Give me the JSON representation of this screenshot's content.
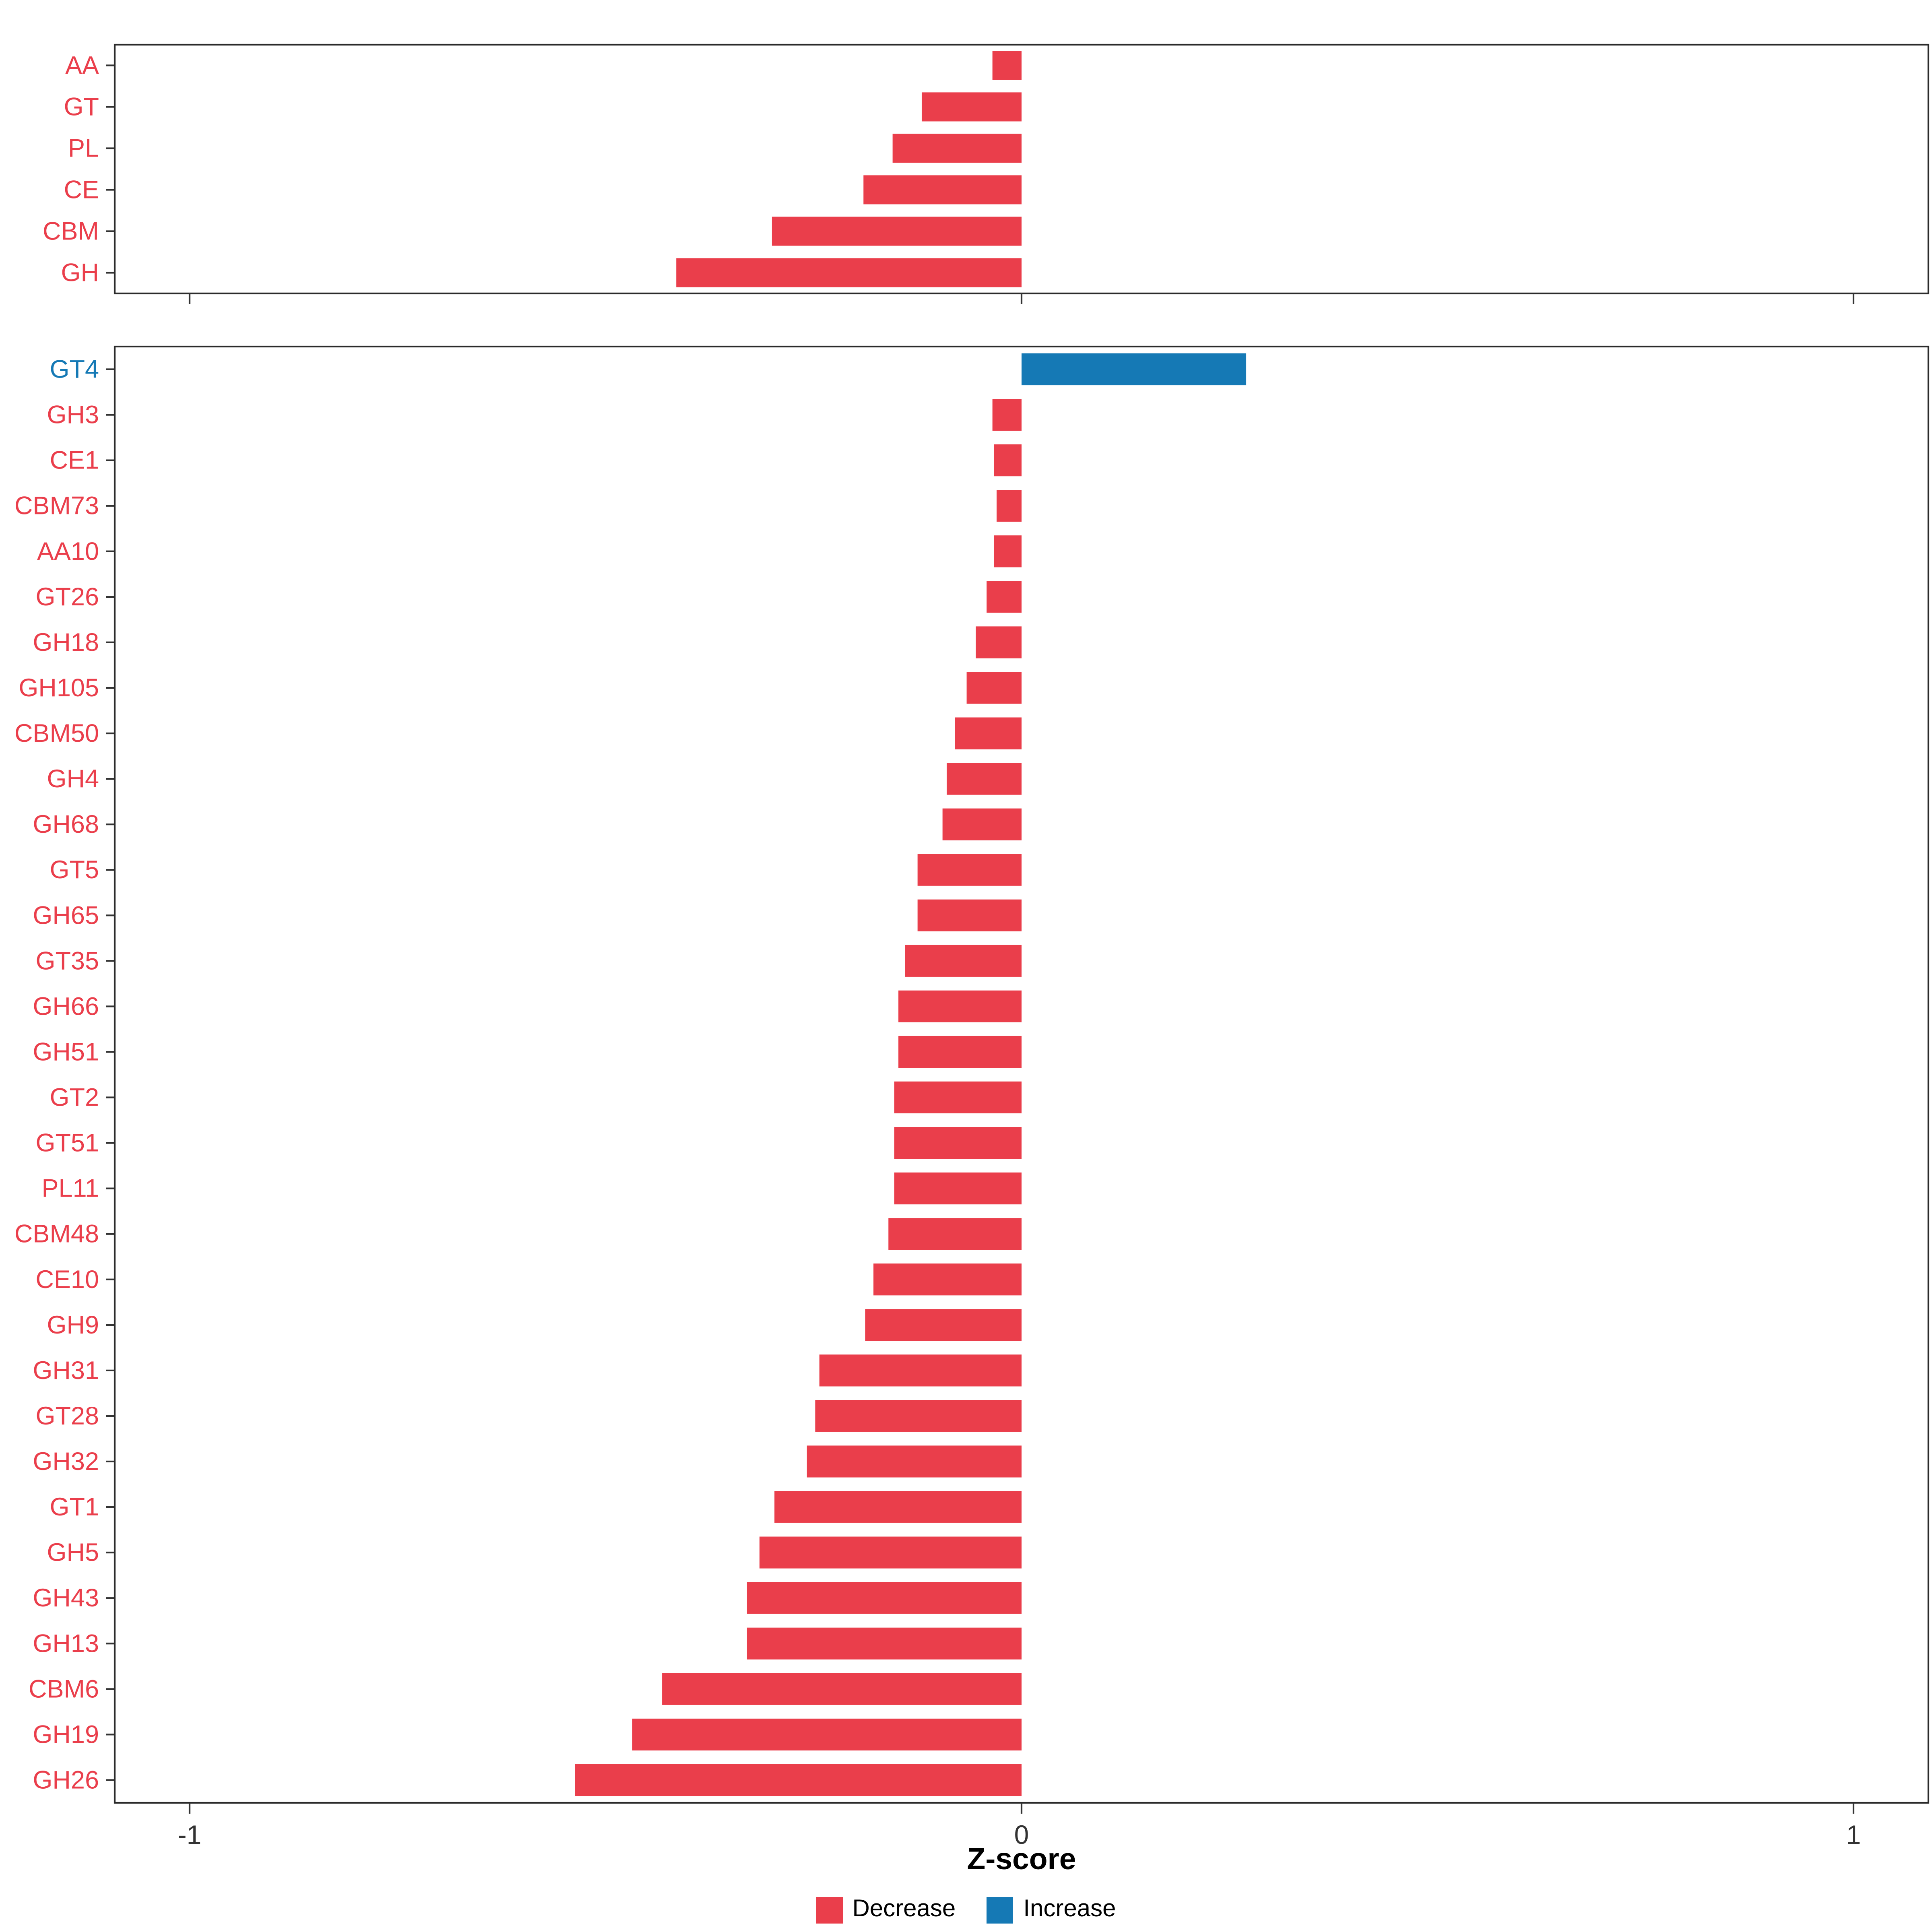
{
  "chart_data": {
    "type": "bar",
    "orientation": "horizontal",
    "title": "",
    "xlabel": "Z-score",
    "ylabel": "",
    "x_domain": [
      -1.09,
      1.09
    ],
    "x_ticks": [
      -1,
      0,
      1
    ],
    "x_tick_labels": [
      "-1",
      "0",
      "1"
    ],
    "grid": false,
    "legend_position": "bottom",
    "colors": {
      "decrease": "#EA3E4B",
      "increase": "#1579B5"
    },
    "legend": [
      {
        "label": "Decrease",
        "color_key": "decrease"
      },
      {
        "label": "Increase",
        "color_key": "increase"
      }
    ],
    "panels": [
      {
        "name": "cazyme-class-summary",
        "categories": [
          "AA",
          "GT",
          "PL",
          "CE",
          "CBM",
          "GH"
        ],
        "values": [
          -0.035,
          -0.12,
          -0.155,
          -0.19,
          -0.3,
          -0.415
        ]
      },
      {
        "name": "cazyme-family-detail",
        "categories": [
          "GT4",
          "GH3",
          "CE1",
          "CBM73",
          "AA10",
          "GT26",
          "GH18",
          "GH105",
          "CBM50",
          "GH4",
          "GH68",
          "GT5",
          "GH65",
          "GT35",
          "GH66",
          "GH51",
          "GT2",
          "GT51",
          "PL11",
          "CBM48",
          "CE10",
          "GH9",
          "GH31",
          "GT28",
          "GH32",
          "GT1",
          "GH5",
          "GH43",
          "GH13",
          "CBM6",
          "GH19",
          "GH26"
        ],
        "values": [
          0.27,
          -0.035,
          -0.033,
          -0.03,
          -0.033,
          -0.042,
          -0.055,
          -0.066,
          -0.08,
          -0.09,
          -0.095,
          -0.125,
          -0.125,
          -0.14,
          -0.148,
          -0.148,
          -0.153,
          -0.153,
          -0.153,
          -0.16,
          -0.178,
          -0.188,
          -0.243,
          -0.248,
          -0.258,
          -0.297,
          -0.315,
          -0.33,
          -0.33,
          -0.432,
          -0.468,
          -0.537
        ]
      }
    ]
  }
}
